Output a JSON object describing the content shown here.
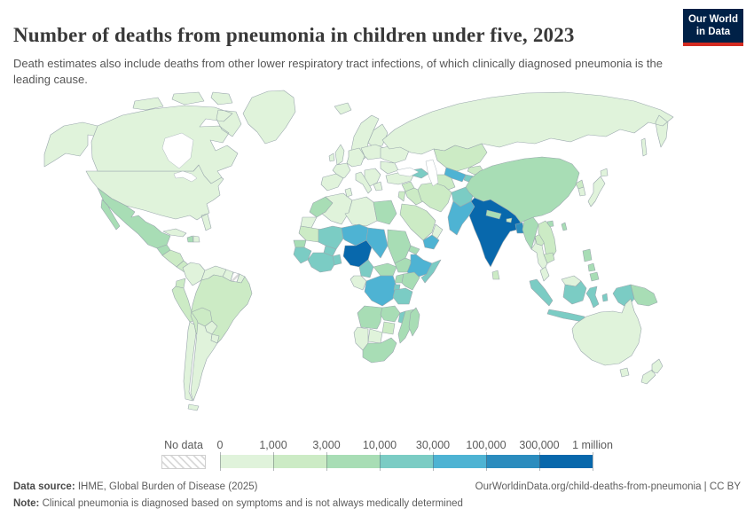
{
  "chart": {
    "title": "Number of deaths from pneumonia in children under five, 2023",
    "subtitle": "Death estimates also include deaths from other lower respiratory tract infections, of which clinically diagnosed pneumonia is the leading cause."
  },
  "logo": {
    "line1": "Our World",
    "line2": "in Data",
    "bg_color": "#002147",
    "accent_color": "#d42b21"
  },
  "legend": {
    "no_data_label": "No data",
    "tick_labels": [
      "0",
      "1,000",
      "3,000",
      "10,000",
      "30,000",
      "100,000",
      "300,000",
      "1 million"
    ],
    "bin_colors": [
      "#e0f3db",
      "#ccebc5",
      "#a8ddb5",
      "#7bccc4",
      "#4eb3d3",
      "#2b8cbe",
      "#0868ac"
    ],
    "bin_ranges": [
      "0–1,000",
      "1,000–3,000",
      "3,000–10,000",
      "10,000–30,000",
      "30,000–100,000",
      "100,000–300,000",
      "300,000–1 million"
    ]
  },
  "footer": {
    "source_label": "Data source:",
    "source_text": " IHME, Global Burden of Disease (2025)",
    "attribution": "OurWorldinData.org/child-deaths-from-pneumonia | CC BY",
    "note_label": "Note:",
    "note_text": " Clinical pneumonia is diagnosed based on symptoms and is not always medically determined"
  },
  "chart_data": {
    "type": "choropleth_map",
    "title": "Number of deaths from pneumonia in children under five, 2023",
    "year": 2023,
    "unit": "deaths",
    "legend_position": "bottom",
    "countries": [
      {
        "id": "united-states",
        "name": "United States",
        "bin": 0
      },
      {
        "id": "canada",
        "name": "Canada",
        "bin": 0
      },
      {
        "id": "greenland",
        "name": "Greenland",
        "bin": 0
      },
      {
        "id": "cuba",
        "name": "Cuba",
        "bin": 0
      },
      {
        "id": "haiti",
        "name": "Haiti",
        "bin": 2
      },
      {
        "id": "dominican-republic",
        "name": "Dominican Republic",
        "bin": 0
      },
      {
        "id": "mexico",
        "name": "Mexico",
        "bin": 2
      },
      {
        "id": "guatemala",
        "name": "Guatemala",
        "bin": 2
      },
      {
        "id": "honduras-nicaragua",
        "name": "Honduras & Nicaragua",
        "bin": 1
      },
      {
        "id": "costa-rica-panama",
        "name": "Costa Rica & Panama",
        "bin": 1
      },
      {
        "id": "colombia",
        "name": "Colombia",
        "bin": 0
      },
      {
        "id": "venezuela",
        "name": "Venezuela",
        "bin": 0
      },
      {
        "id": "guyana",
        "name": "Guyana",
        "bin": 0
      },
      {
        "id": "suriname",
        "name": "Suriname",
        "bin": null
      },
      {
        "id": "french-guiana",
        "name": "French Guiana",
        "bin": 0
      },
      {
        "id": "ecuador",
        "name": "Ecuador",
        "bin": 1
      },
      {
        "id": "peru",
        "name": "Peru",
        "bin": 1
      },
      {
        "id": "brazil",
        "name": "Brazil",
        "bin": 1
      },
      {
        "id": "bolivia",
        "name": "Bolivia",
        "bin": 1
      },
      {
        "id": "paraguay",
        "name": "Paraguay",
        "bin": 0
      },
      {
        "id": "chile",
        "name": "Chile",
        "bin": 0
      },
      {
        "id": "argentina",
        "name": "Argentina",
        "bin": 0
      },
      {
        "id": "uruguay",
        "name": "Uruguay",
        "bin": 0
      },
      {
        "id": "iceland",
        "name": "Iceland",
        "bin": 0
      },
      {
        "id": "scandinavia",
        "name": "Norway & Sweden",
        "bin": 0
      },
      {
        "id": "finland",
        "name": "Finland",
        "bin": 0
      },
      {
        "id": "denmark",
        "name": "Denmark",
        "bin": 0
      },
      {
        "id": "united-kingdom",
        "name": "United Kingdom",
        "bin": 0
      },
      {
        "id": "ireland",
        "name": "Ireland",
        "bin": 0
      },
      {
        "id": "iberia",
        "name": "Spain & Portugal",
        "bin": 0
      },
      {
        "id": "france",
        "name": "France",
        "bin": 0
      },
      {
        "id": "central-europe",
        "name": "Central Europe",
        "bin": 0
      },
      {
        "id": "italy",
        "name": "Italy",
        "bin": 0
      },
      {
        "id": "balkans",
        "name": "Balkans",
        "bin": 0
      },
      {
        "id": "greece",
        "name": "Greece",
        "bin": 0
      },
      {
        "id": "poland-baltics",
        "name": "Poland & Baltics",
        "bin": 0
      },
      {
        "id": "ukraine-belarus",
        "name": "Ukraine & Belarus",
        "bin": 0
      },
      {
        "id": "romania-bulgaria",
        "name": "Romania & Bulgaria",
        "bin": 0
      },
      {
        "id": "russia",
        "name": "Russia",
        "bin": 0
      },
      {
        "id": "turkey",
        "name": "Turkey",
        "bin": 0
      },
      {
        "id": "caucasus",
        "name": "Caucasus",
        "bin": 3
      },
      {
        "id": "kazakhstan",
        "name": "Kazakhstan",
        "bin": 1
      },
      {
        "id": "uzbekistan",
        "name": "Uzbekistan",
        "bin": 4
      },
      {
        "id": "turkmenistan",
        "name": "Turkmenistan",
        "bin": 1
      },
      {
        "id": "kyrgyzstan",
        "name": "Kyrgyzstan",
        "bin": 1
      },
      {
        "id": "tajikistan",
        "name": "Tajikistan",
        "bin": 3
      },
      {
        "id": "mongolia",
        "name": "Mongolia",
        "bin": 0
      },
      {
        "id": "syria",
        "name": "Syria",
        "bin": 1
      },
      {
        "id": "jordan-israel",
        "name": "Jordan & Israel",
        "bin": 1
      },
      {
        "id": "iraq",
        "name": "Iraq",
        "bin": 1
      },
      {
        "id": "iran",
        "name": "Iran",
        "bin": 1
      },
      {
        "id": "saudi-arabia",
        "name": "Saudi Arabia",
        "bin": 1
      },
      {
        "id": "yemen",
        "name": "Yemen",
        "bin": 4
      },
      {
        "id": "oman",
        "name": "Oman",
        "bin": 0
      },
      {
        "id": "afghanistan",
        "name": "Afghanistan",
        "bin": 3
      },
      {
        "id": "pakistan",
        "name": "Pakistan",
        "bin": 4
      },
      {
        "id": "india",
        "name": "India",
        "bin": 6
      },
      {
        "id": "sri-lanka",
        "name": "Sri Lanka",
        "bin": 1
      },
      {
        "id": "nepal",
        "name": "Nepal",
        "bin": 2
      },
      {
        "id": "bhutan",
        "name": "Bhutan",
        "bin": 1
      },
      {
        "id": "bangladesh",
        "name": "Bangladesh",
        "bin": 5
      },
      {
        "id": "myanmar",
        "name": "Myanmar",
        "bin": 2
      },
      {
        "id": "china",
        "name": "China",
        "bin": 2
      },
      {
        "id": "north-korea",
        "name": "North Korea",
        "bin": 1
      },
      {
        "id": "south-korea",
        "name": "South Korea",
        "bin": 0
      },
      {
        "id": "japan",
        "name": "Japan",
        "bin": 0
      },
      {
        "id": "taiwan",
        "name": "Taiwan",
        "bin": 2
      },
      {
        "id": "laos",
        "name": "Laos",
        "bin": 1
      },
      {
        "id": "vietnam",
        "name": "Vietnam",
        "bin": 1
      },
      {
        "id": "thailand",
        "name": "Thailand",
        "bin": 0
      },
      {
        "id": "cambodia",
        "name": "Cambodia",
        "bin": 1
      },
      {
        "id": "peninsular-malaysia",
        "name": "Malaysia (peninsular)",
        "bin": 0
      },
      {
        "id": "malaysia-borneo",
        "name": "Malaysia (Borneo)",
        "bin": 0
      },
      {
        "id": "indonesia",
        "name": "Indonesia",
        "bin": 3
      },
      {
        "id": "philippines",
        "name": "Philippines",
        "bin": 2
      },
      {
        "id": "papua-new-guinea",
        "name": "Papua New Guinea",
        "bin": 2
      },
      {
        "id": "australia",
        "name": "Australia",
        "bin": 0
      },
      {
        "id": "new-zealand",
        "name": "New Zealand",
        "bin": 0
      },
      {
        "id": "morocco",
        "name": "Morocco",
        "bin": 2
      },
      {
        "id": "western-sahara",
        "name": "Western Sahara",
        "bin": 0
      },
      {
        "id": "algeria",
        "name": "Algeria",
        "bin": 0
      },
      {
        "id": "tunisia",
        "name": "Tunisia",
        "bin": 0
      },
      {
        "id": "libya",
        "name": "Libya",
        "bin": 0
      },
      {
        "id": "egypt",
        "name": "Egypt",
        "bin": 2
      },
      {
        "id": "mauritania",
        "name": "Mauritania",
        "bin": 1
      },
      {
        "id": "senegal",
        "name": "Senegal",
        "bin": 2
      },
      {
        "id": "guinea-region",
        "name": "Guinea, Sierra Leone & Liberia",
        "bin": 3
      },
      {
        "id": "mali",
        "name": "Mali",
        "bin": 3
      },
      {
        "id": "burkina-faso",
        "name": "Burkina Faso",
        "bin": 3
      },
      {
        "id": "cote-divoire-ghana",
        "name": "Côte d'Ivoire & Ghana",
        "bin": 3
      },
      {
        "id": "benin-togo",
        "name": "Benin & Togo",
        "bin": 3
      },
      {
        "id": "niger",
        "name": "Niger",
        "bin": 4
      },
      {
        "id": "nigeria",
        "name": "Nigeria",
        "bin": 6
      },
      {
        "id": "chad",
        "name": "Chad",
        "bin": 4
      },
      {
        "id": "cameroon",
        "name": "Cameroon",
        "bin": 3
      },
      {
        "id": "central-african-republic",
        "name": "Central African Republic",
        "bin": 2
      },
      {
        "id": "sudan",
        "name": "Sudan",
        "bin": 2
      },
      {
        "id": "south-sudan",
        "name": "South Sudan",
        "bin": 2
      },
      {
        "id": "eritrea",
        "name": "Eritrea",
        "bin": 2
      },
      {
        "id": "ethiopia",
        "name": "Ethiopia",
        "bin": 4
      },
      {
        "id": "somalia",
        "name": "Somalia",
        "bin": 3
      },
      {
        "id": "gabon-congo",
        "name": "Gabon & Congo",
        "bin": 0
      },
      {
        "id": "drc",
        "name": "Democratic Republic of Congo",
        "bin": 4
      },
      {
        "id": "uganda",
        "name": "Uganda",
        "bin": 2
      },
      {
        "id": "kenya",
        "name": "Kenya",
        "bin": 2
      },
      {
        "id": "rwanda-burundi",
        "name": "Rwanda & Burundi",
        "bin": 3
      },
      {
        "id": "tanzania",
        "name": "Tanzania",
        "bin": 3
      },
      {
        "id": "angola",
        "name": "Angola",
        "bin": 2
      },
      {
        "id": "zambia",
        "name": "Zambia",
        "bin": 2
      },
      {
        "id": "malawi",
        "name": "Malawi",
        "bin": 3
      },
      {
        "id": "mozambique",
        "name": "Mozambique",
        "bin": 2
      },
      {
        "id": "zimbabwe",
        "name": "Zimbabwe",
        "bin": 1
      },
      {
        "id": "botswana",
        "name": "Botswana",
        "bin": 0
      },
      {
        "id": "namibia",
        "name": "Namibia",
        "bin": 0
      },
      {
        "id": "south-africa",
        "name": "South Africa",
        "bin": 2
      },
      {
        "id": "madagascar",
        "name": "Madagascar",
        "bin": 2
      }
    ]
  }
}
